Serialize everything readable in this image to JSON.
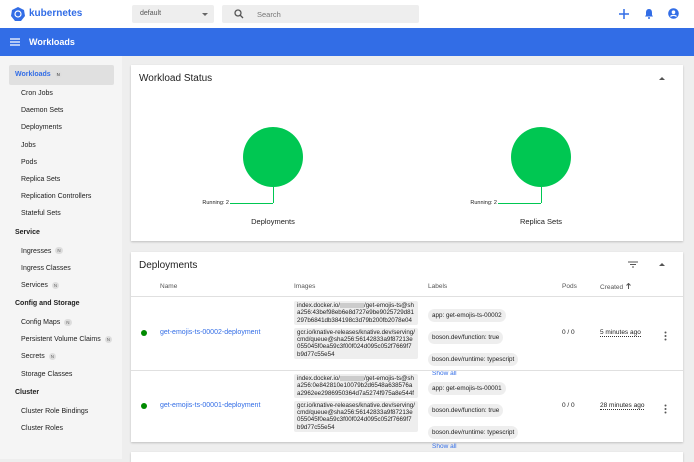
{
  "header": {
    "brand": "kubernetes",
    "namespace": "default",
    "search_placeholder": "Search"
  },
  "toolbar": {
    "title": "Workloads"
  },
  "sidebar": {
    "sections": [
      {
        "title": "Workloads",
        "badge": "N",
        "items": [
          {
            "label": "Cron Jobs"
          },
          {
            "label": "Daemon Sets"
          },
          {
            "label": "Deployments"
          },
          {
            "label": "Jobs"
          },
          {
            "label": "Pods"
          },
          {
            "label": "Replica Sets"
          },
          {
            "label": "Replication Controllers"
          },
          {
            "label": "Stateful Sets"
          }
        ]
      },
      {
        "title": "Service",
        "items": [
          {
            "label": "Ingresses",
            "badge": "N"
          },
          {
            "label": "Ingress Classes"
          },
          {
            "label": "Services",
            "badge": "N"
          }
        ]
      },
      {
        "title": "Config and Storage",
        "items": [
          {
            "label": "Config Maps",
            "badge": "N"
          },
          {
            "label": "Persistent Volume Claims",
            "badge": "N"
          },
          {
            "label": "Secrets",
            "badge": "N"
          },
          {
            "label": "Storage Classes"
          }
        ]
      },
      {
        "title": "Cluster",
        "items": [
          {
            "label": "Cluster Role Bindings"
          },
          {
            "label": "Cluster Roles"
          }
        ]
      }
    ]
  },
  "status_card": {
    "title": "Workload Status",
    "charts": [
      {
        "legend": "Running: 2",
        "label": "Deployments"
      },
      {
        "legend": "Running: 2",
        "label": "Replica Sets"
      }
    ]
  },
  "deployments": {
    "title": "Deployments",
    "columns": [
      "Name",
      "Images",
      "Labels",
      "Pods",
      "Created"
    ],
    "rows": [
      {
        "name": "get-emojis-ts-00002-deployment",
        "images": [
          [
            "index.docker.io/",
            "/get-emojis-ts@sha256:43bef98eb6e8d727e9be9025729d81297b6841db384198c3d79b200fb2078e04"
          ],
          [
            "gcr.io/knative-releases/knative.dev/serving/cmd/queue@sha256:56142833a9f87213e055045f0ea59c3f00f024d095c052f7669f7b9d77c55e54"
          ]
        ],
        "labels": [
          "app: get-emojis-ts-00002",
          "boson.dev/function: true",
          "boson.dev/runtime: typescript"
        ],
        "show_all": "Show all",
        "pods": "0 / 0",
        "created": "5 minutes ago"
      },
      {
        "name": "get-emojis-ts-00001-deployment",
        "images": [
          [
            "index.docker.io/",
            "/get-emojis-ts@sha256:0e842810e10079b2d6548a638576aa2962ee2986950364d7a5274f975a8e544f"
          ],
          [
            "gcr.io/knative-releases/knative.dev/serving/cmd/queue@sha256:56142833a9f87213e055045f0ea59c3f00f024d095c052f7669f7b9d77c55e54"
          ]
        ],
        "labels": [
          "app: get-emojis-ts-00001",
          "boson.dev/function: true",
          "boson.dev/runtime: typescript"
        ],
        "show_all": "Show all",
        "pods": "0 / 0",
        "created": "28 minutes ago"
      }
    ]
  }
}
